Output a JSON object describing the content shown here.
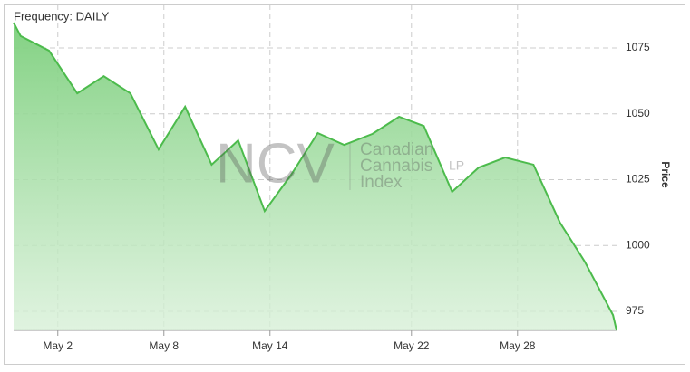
{
  "chart_data": {
    "type": "area",
    "frequency_label": "Frequency: DAILY",
    "y_label": "Price",
    "watermark": {
      "logo": "NCV",
      "lines": [
        "Canadian",
        "Cannabis",
        "Index"
      ],
      "suffix": "LP"
    },
    "x": [
      -0.5,
      -0.1,
      1.5,
      3.1,
      4.6,
      6.1,
      7.7,
      9.2,
      10.7,
      12.2,
      13.7,
      15.2,
      16.7,
      18.2,
      19.8,
      21.3,
      22.7,
      24.3,
      25.8,
      27.3,
      28.9,
      30.4,
      31.8,
      33.4,
      33.6
    ],
    "series": [
      {
        "name": "Price",
        "color": "#4cbb4c",
        "values": [
          1084.6,
          1079.5,
          1074.0,
          1057.8,
          1064.3,
          1057.8,
          1036.5,
          1052.7,
          1030.7,
          1039.9,
          1013.1,
          1026.9,
          1042.7,
          1038.2,
          1042.4,
          1048.9,
          1045.4,
          1020.4,
          1029.6,
          1033.4,
          1030.7,
          1008.7,
          993.9,
          973.6,
          967.8
        ]
      }
    ],
    "xlim": [
      -0.5,
      33.6
    ],
    "xticks": [
      {
        "value": 2,
        "label": "May 2"
      },
      {
        "value": 8,
        "label": "May 8"
      },
      {
        "value": 14,
        "label": "May 14"
      },
      {
        "value": 22,
        "label": "May 22"
      },
      {
        "value": 28,
        "label": "May 28"
      }
    ],
    "ylim": [
      967.8,
      1091.5
    ],
    "yticks": [
      975,
      1000,
      1025,
      1050,
      1075
    ],
    "grid": true
  }
}
